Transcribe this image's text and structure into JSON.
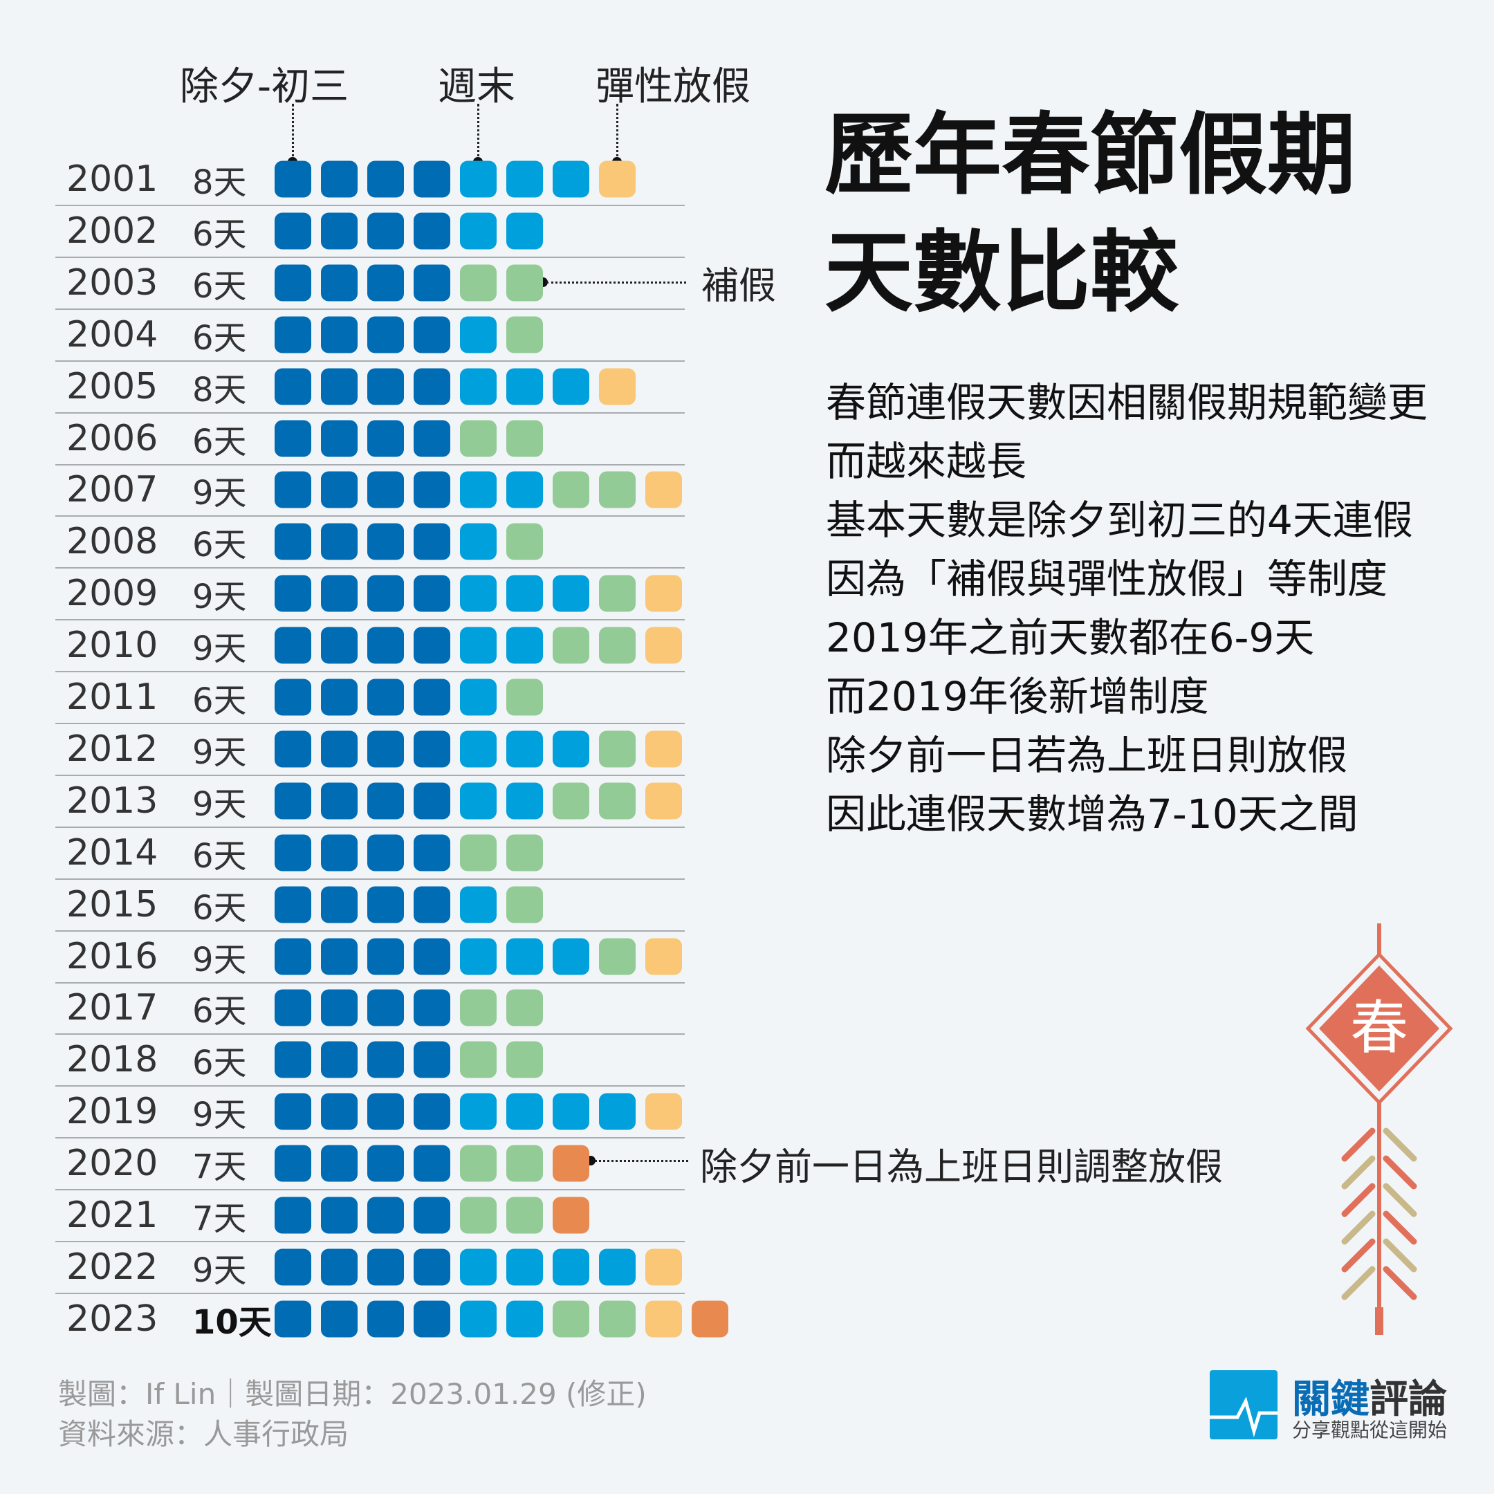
{
  "colors": {
    "D": "#006cb4",
    "B": "#00a0dc",
    "G": "#92cb96",
    "Y": "#f9c775",
    "O": "#e88a50"
  },
  "chart_data": {
    "type": "table",
    "title": "歷年春節假期天數比較",
    "legend": {
      "D": "除夕-初三",
      "B": "週末",
      "Y": "彈性放假",
      "G": "補假",
      "O": "除夕前一日為上班日則調整放假"
    },
    "rows": [
      {
        "year": "2001",
        "days": "8天",
        "cells": "DDDDBBBY"
      },
      {
        "year": "2002",
        "days": "6天",
        "cells": "DDDDBB"
      },
      {
        "year": "2003",
        "days": "6天",
        "cells": "DDDDGG"
      },
      {
        "year": "2004",
        "days": "6天",
        "cells": "DDDDBG"
      },
      {
        "year": "2005",
        "days": "8天",
        "cells": "DDDDBBBY"
      },
      {
        "year": "2006",
        "days": "6天",
        "cells": "DDDDGG"
      },
      {
        "year": "2007",
        "days": "9天",
        "cells": "DDDDBBGGY"
      },
      {
        "year": "2008",
        "days": "6天",
        "cells": "DDDDBG"
      },
      {
        "year": "2009",
        "days": "9天",
        "cells": "DDDDBBBGY"
      },
      {
        "year": "2010",
        "days": "9天",
        "cells": "DDDDBBGGY"
      },
      {
        "year": "2011",
        "days": "6天",
        "cells": "DDDDBG"
      },
      {
        "year": "2012",
        "days": "9天",
        "cells": "DDDDBBBGY"
      },
      {
        "year": "2013",
        "days": "9天",
        "cells": "DDDDBBGGY"
      },
      {
        "year": "2014",
        "days": "6天",
        "cells": "DDDDGG"
      },
      {
        "year": "2015",
        "days": "6天",
        "cells": "DDDDBG"
      },
      {
        "year": "2016",
        "days": "9天",
        "cells": "DDDDBBBGY"
      },
      {
        "year": "2017",
        "days": "6天",
        "cells": "DDDDGG"
      },
      {
        "year": "2018",
        "days": "6天",
        "cells": "DDDDGG"
      },
      {
        "year": "2019",
        "days": "9天",
        "cells": "DDDDBBBBY"
      },
      {
        "year": "2020",
        "days": "7天",
        "cells": "DDDDGGO"
      },
      {
        "year": "2021",
        "days": "7天",
        "cells": "DDDDGGO"
      },
      {
        "year": "2022",
        "days": "9天",
        "cells": "DDDDBBBBY"
      },
      {
        "year": "2023",
        "days": "10天",
        "cells": "DDDDBBGGYO",
        "bold": true
      }
    ]
  },
  "headers": {
    "eve": "除夕-初三",
    "weekend": "週末",
    "flex": "彈性放假"
  },
  "annotations": {
    "makeup": "補假",
    "eve_adjust": "除夕前一日為上班日則調整放假"
  },
  "title": {
    "line1": "歷年春節假期",
    "line2": "天數比較"
  },
  "body": [
    "春節連假天數因相關假期規範變更",
    "而越來越長",
    "基本天數是除夕到初三的4天連假",
    "因為「補假與彈性放假」等制度",
    "2019年之前天數都在6-9天",
    "而2019年後新增制度",
    "除夕前一日若為上班日則放假",
    "因此連假天數增為7-10天之間"
  ],
  "footer": {
    "credit": "製圖：If Lin｜製圖日期：2023.01.29 (修正)",
    "source": "資料來源：人事行政局"
  },
  "decoration": {
    "char": "春"
  },
  "logo": {
    "name_blue": "關鍵",
    "name_dark": "評論",
    "slogan": "分享觀點從這開始"
  }
}
